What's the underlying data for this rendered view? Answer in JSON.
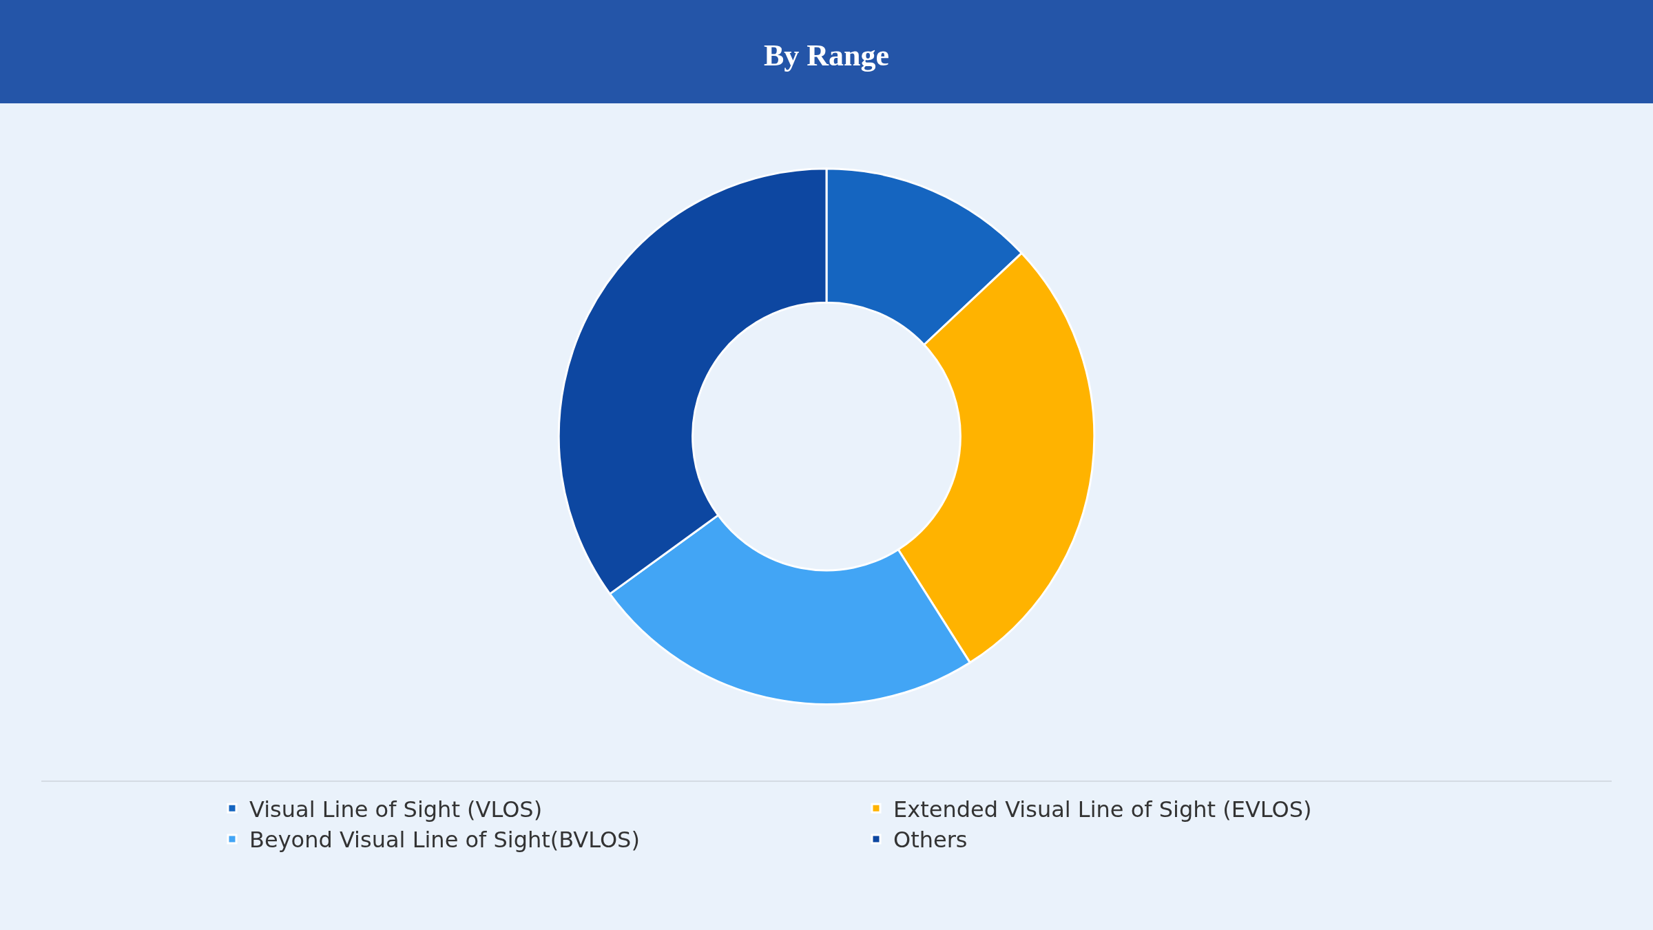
{
  "chart_data": {
    "type": "donut",
    "title": "By Range",
    "categories": [
      "Visual Line of Sight (VLOS)",
      "Extended Visual Line of Sight (EVLOS)",
      "Beyond Visual Line of Sight(BVLOS)",
      "Others"
    ],
    "values": [
      13,
      28,
      24,
      35
    ],
    "colors": [
      "#1565c0",
      "#ffb300",
      "#42a5f5",
      "#0d47a1"
    ],
    "legend": "bottom"
  }
}
